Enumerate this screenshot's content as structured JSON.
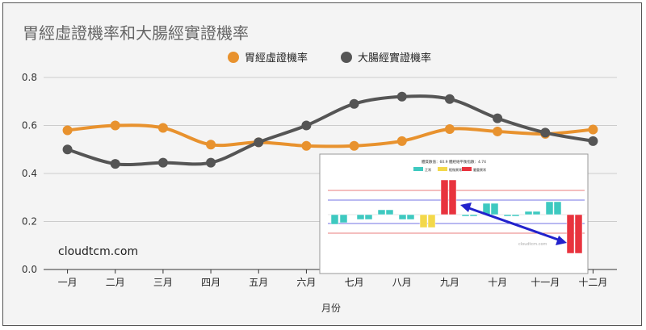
{
  "chart_data": {
    "type": "line",
    "title": "胃經虛證機率和大腸經實證機率",
    "xlabel": "月份",
    "ylabel": "",
    "categories": [
      "一月",
      "二月",
      "三月",
      "四月",
      "五月",
      "六月",
      "七月",
      "八月",
      "九月",
      "十月",
      "十一月",
      "十二月"
    ],
    "ylim": [
      0,
      0.8
    ],
    "yticks": [
      "0.0",
      "0.2",
      "0.4",
      "0.6",
      "0.8"
    ],
    "grid": true,
    "smooth": true,
    "legend_position": "top-center",
    "series": [
      {
        "name": "胃經虛證機率",
        "color": "#E8922E",
        "values": [
          0.58,
          0.6,
          0.59,
          0.52,
          0.53,
          0.515,
          0.515,
          0.535,
          0.585,
          0.575,
          0.565,
          0.583
        ]
      },
      {
        "name": "大腸經實證機率",
        "color": "#555555",
        "values": [
          0.5,
          0.44,
          0.445,
          0.445,
          0.53,
          0.6,
          0.69,
          0.72,
          0.71,
          0.63,
          0.57,
          0.535
        ]
      }
    ],
    "annotation": "cloudtcm.com"
  },
  "inset": {
    "header": "體質數值：60.9 體經絡平衡指數：4.74",
    "legend": [
      {
        "label": "正常",
        "color": "#3ec9c0"
      },
      {
        "label": "輕微異常",
        "color": "#f3d84a"
      },
      {
        "label": "嚴重異常",
        "color": "#e8333e"
      }
    ],
    "watermark": "cloudtcm.com",
    "arrow_color": "#2222cc"
  }
}
